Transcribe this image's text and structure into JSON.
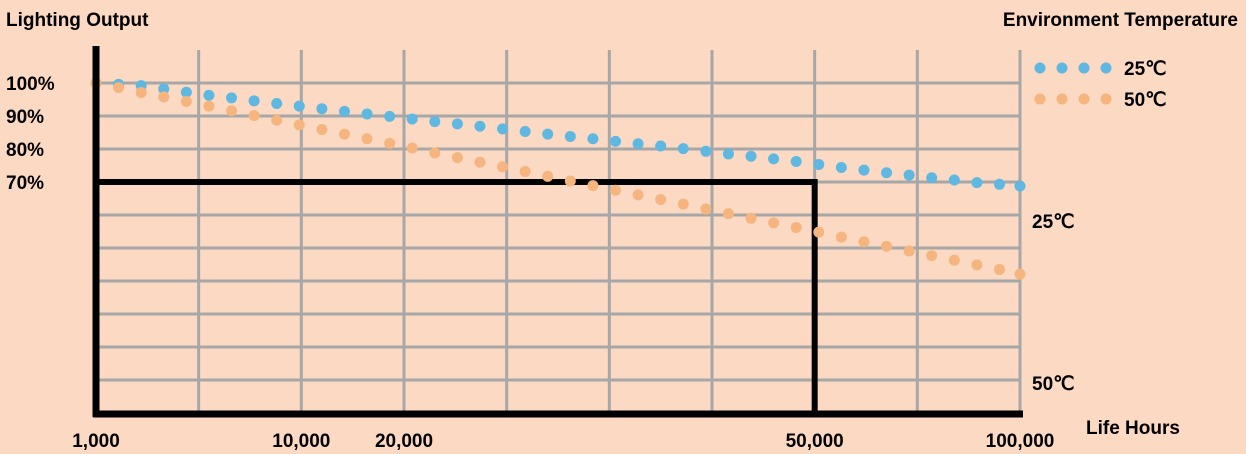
{
  "colors": {
    "background": "#fbd9c3",
    "grid": "#a7a7a7",
    "axis": "#000000",
    "series_25": "#5eb8e1",
    "series_50": "#f6b57e"
  },
  "chart_data": {
    "type": "scatter",
    "title": "Lighting Output",
    "xlabel": "Life Hours",
    "ylabel": "Lighting Output",
    "legend_title": "Environment Temperature",
    "legend_position": "top-right",
    "grid": true,
    "x_ticks": [
      "1,000",
      "10,000",
      "20,000",
      "50,000",
      "100,000"
    ],
    "x_tick_index": [
      0,
      2,
      3,
      7,
      9
    ],
    "x_divisions": 9,
    "y_ticks": [
      "100%",
      "90%",
      "80%",
      "70%"
    ],
    "y_tick_values": [
      100,
      90,
      80,
      70
    ],
    "ylim": [
      0,
      100
    ],
    "threshold": {
      "y": 70,
      "x_index": 7
    },
    "series": [
      {
        "name": "25℃",
        "end_label": "25℃",
        "color_key": "series_25",
        "x_index": [
          0,
          0.22,
          0.44,
          0.66,
          0.88,
          1.1,
          1.32,
          1.54,
          1.76,
          1.98,
          2.2,
          2.42,
          2.64,
          2.86,
          3.08,
          3.3,
          3.52,
          3.74,
          3.96,
          4.18,
          4.4,
          4.62,
          4.84,
          5.06,
          5.28,
          5.5,
          5.72,
          5.94,
          6.16,
          6.38,
          6.6,
          6.82,
          7.04,
          7.26,
          7.48,
          7.7,
          7.92,
          8.14,
          8.36,
          8.58,
          8.8,
          9.0
        ],
        "y": [
          100.0,
          99.6,
          99.2,
          98.2,
          97.2,
          96.3,
          95.5,
          94.6,
          93.8,
          93.0,
          92.2,
          91.4,
          90.6,
          89.9,
          89.1,
          88.3,
          87.6,
          86.9,
          86.1,
          85.3,
          84.5,
          83.8,
          83.1,
          82.3,
          81.6,
          80.9,
          80.1,
          79.3,
          78.5,
          77.8,
          77.0,
          76.2,
          75.3,
          74.4,
          73.6,
          72.8,
          72.1,
          71.3,
          70.6,
          69.8,
          69.3,
          68.8
        ]
      },
      {
        "name": "50℃",
        "end_label": "50℃",
        "color_key": "series_50",
        "x_index": [
          0,
          0.22,
          0.44,
          0.66,
          0.88,
          1.1,
          1.32,
          1.54,
          1.76,
          1.98,
          2.2,
          2.42,
          2.64,
          2.86,
          3.08,
          3.3,
          3.52,
          3.74,
          3.96,
          4.18,
          4.4,
          4.62,
          4.84,
          5.06,
          5.28,
          5.5,
          5.72,
          5.94,
          6.16,
          6.38,
          6.6,
          6.82,
          7.04,
          7.26,
          7.48,
          7.7,
          7.92,
          8.14,
          8.36,
          8.58,
          8.8,
          9.0
        ],
        "y": [
          100.0,
          98.6,
          97.1,
          95.8,
          94.4,
          93.0,
          91.6,
          90.1,
          88.7,
          87.3,
          85.9,
          84.5,
          83.1,
          81.7,
          80.3,
          78.8,
          77.4,
          76.0,
          74.6,
          73.2,
          71.7,
          70.3,
          68.9,
          67.5,
          66.1,
          64.7,
          63.3,
          61.8,
          60.4,
          59.0,
          57.6,
          56.2,
          54.8,
          53.3,
          51.9,
          50.5,
          49.1,
          47.7,
          46.3,
          44.9,
          43.5,
          42.1
        ]
      }
    ]
  }
}
